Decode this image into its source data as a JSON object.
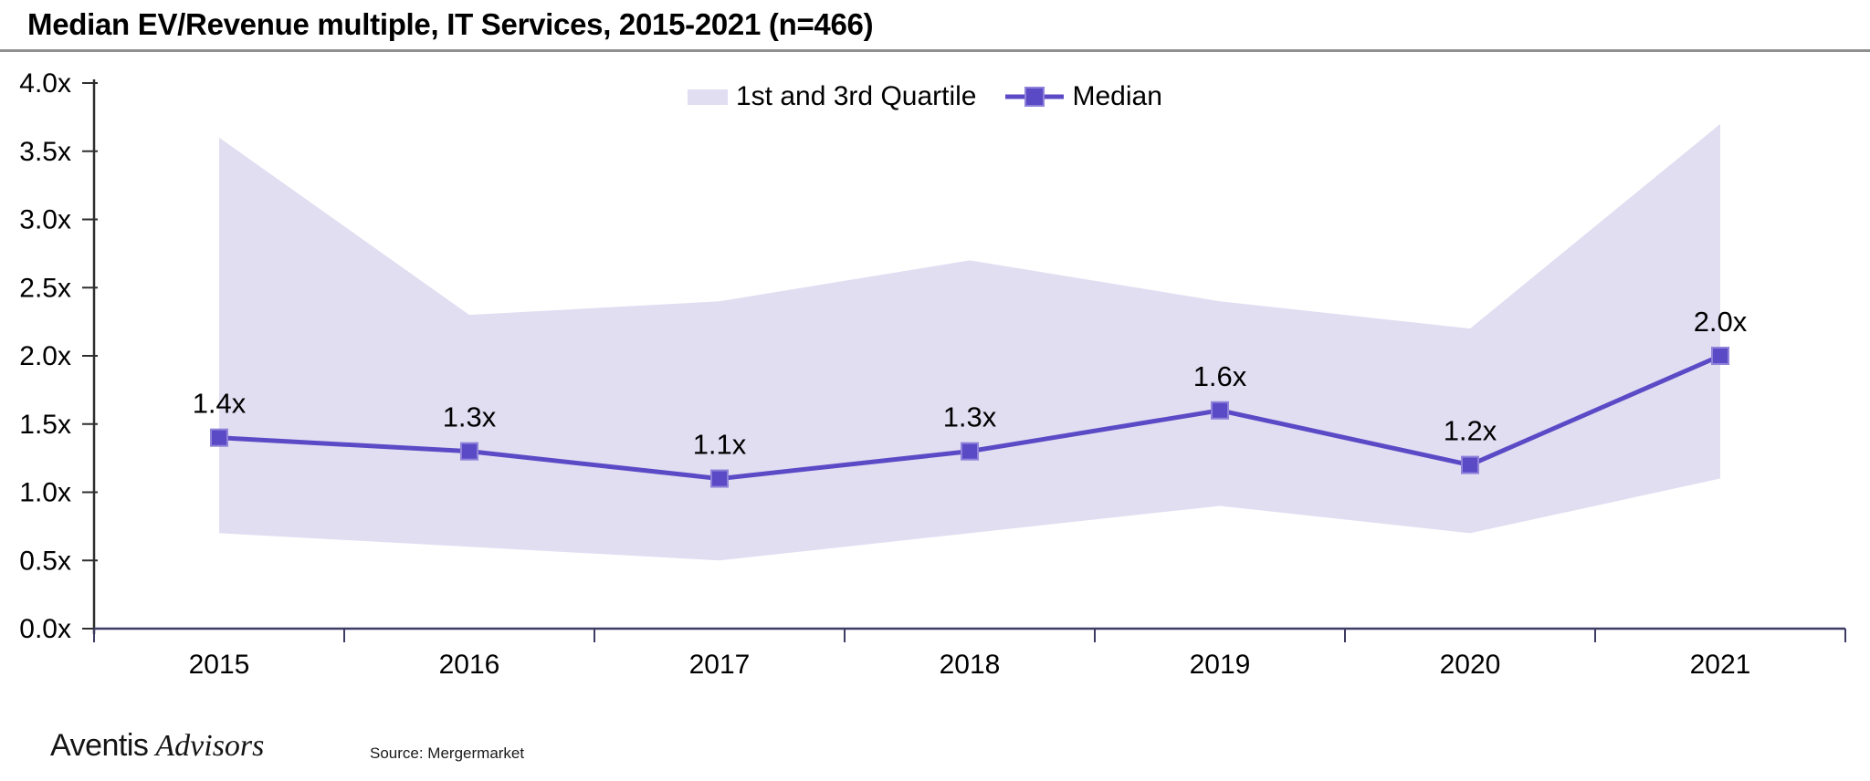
{
  "header": {
    "title": "Median EV/Revenue multiple, IT Services, 2015-2021 (n=466)"
  },
  "legend": {
    "quartile_label": "1st and 3rd Quartile",
    "median_label": "Median"
  },
  "footer": {
    "logo_text_1": "Aventis",
    "logo_text_2": "Advisors",
    "source": "Source: Mergermarket"
  },
  "colors": {
    "median": "#5b4ac6",
    "median_marker_border": "#8e82d9",
    "band": "#e1def2",
    "x_axis": "#3c3c64",
    "y_axis": "#2e2e2e",
    "text": "#000000"
  },
  "chart_data": {
    "type": "line",
    "title": "Median EV/Revenue multiple, IT Services, 2015-2021 (n=466)",
    "categories": [
      "2015",
      "2016",
      "2017",
      "2018",
      "2019",
      "2020",
      "2021"
    ],
    "series": [
      {
        "name": "1st and 3rd Quartile",
        "type": "band",
        "q1": [
          0.7,
          0.6,
          0.5,
          0.7,
          0.9,
          0.7,
          1.1
        ],
        "q3": [
          3.6,
          2.3,
          2.4,
          2.7,
          2.4,
          2.2,
          3.7
        ]
      },
      {
        "name": "Median",
        "type": "line",
        "values": [
          1.4,
          1.3,
          1.1,
          1.3,
          1.6,
          1.2,
          2.0
        ]
      }
    ],
    "data_labels": [
      "1.4x",
      "1.3x",
      "1.1x",
      "1.3x",
      "1.6x",
      "1.2x",
      "2.0x"
    ],
    "y_tick_values": [
      0,
      0.5,
      1,
      1.5,
      2,
      2.5,
      3,
      3.5,
      4
    ],
    "y_tick_labels": [
      "0.0x",
      "0.5x",
      "1.0x",
      "1.5x",
      "2.0x",
      "2.5x",
      "3.0x",
      "3.5x",
      "4.0x"
    ],
    "ylim": [
      0,
      4
    ],
    "grid": false,
    "legend_position": "top",
    "xlabel": "",
    "ylabel": ""
  }
}
